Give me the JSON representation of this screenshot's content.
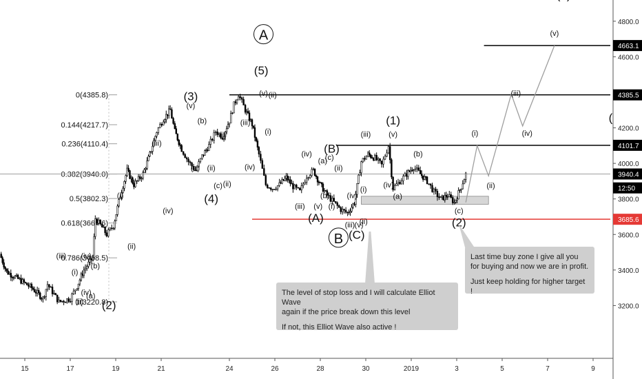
{
  "chart_data": {
    "type": "candlestick-elliott-wave",
    "ylim": [
      3000,
      4900
    ],
    "x_ticks": [
      {
        "label": "15",
        "x": 0
      },
      {
        "label": "17",
        "x": 2
      },
      {
        "label": "19",
        "x": 4
      },
      {
        "label": "21",
        "x": 6
      },
      {
        "label": "24",
        "x": 9
      },
      {
        "label": "26",
        "x": 11
      },
      {
        "label": "28",
        "x": 13
      },
      {
        "label": "30",
        "x": 15
      },
      {
        "label": "2019",
        "x": 17
      },
      {
        "label": "3",
        "x": 19
      },
      {
        "label": "5",
        "x": 21
      },
      {
        "label": "7",
        "x": 23
      },
      {
        "label": "9",
        "x": 25
      }
    ],
    "y_ticks": [
      {
        "label": "4800.0",
        "value": 4800
      },
      {
        "label": "4600.0",
        "value": 4600
      },
      {
        "label": "4200.0",
        "value": 4200
      },
      {
        "label": "4000.0",
        "value": 4000
      },
      {
        "label": "3800.0",
        "value": 3800
      },
      {
        "label": "3600.0",
        "value": 3600
      },
      {
        "label": "3400.0",
        "value": 3400
      },
      {
        "label": "3200.0",
        "value": 3200
      }
    ],
    "price_badges": [
      {
        "label": "4663.1",
        "value": 4663.1,
        "color": "#000000"
      },
      {
        "label": "4385.5",
        "value": 4385.5,
        "color": "#000000"
      },
      {
        "label": "4101.7",
        "value": 4101.7,
        "color": "#000000"
      },
      {
        "label": "3940.4",
        "value": 3940.4,
        "color": "#000000"
      },
      {
        "label": "12:50",
        "value": 3862,
        "color": "#000000"
      },
      {
        "label": "3685.6",
        "value": 3685.6,
        "color": "#e53935"
      }
    ],
    "horizontal_levels": [
      {
        "value": 4663.1,
        "x_start": 20.2,
        "x_end": 26.4,
        "color": "#000000"
      },
      {
        "value": 4385.5,
        "x_start": 9,
        "x_end": 26.4,
        "color": "#000000"
      },
      {
        "value": 4101.7,
        "x_start": 13.7,
        "x_end": 26.4,
        "color": "#000000"
      },
      {
        "value": 3685.6,
        "x_start": 10,
        "x_end": 26.4,
        "color": "#e53935"
      }
    ],
    "current_price": 3940.4,
    "fib_retracement": [
      {
        "label": "0(4385.8)",
        "value": 4385.8
      },
      {
        "label": "0.144(4217.7)",
        "value": 4217.7
      },
      {
        "label": "0.236(4110.4)",
        "value": 4110.4
      },
      {
        "label": "0.382(3940.0)",
        "value": 3940.0
      },
      {
        "label": "0.5(3802.3)",
        "value": 3802.3
      },
      {
        "label": "0.618(3664.6)",
        "value": 3664.6
      },
      {
        "label": "0.786(3468.5)",
        "value": 3468.5
      },
      {
        "label": "1(3220.8)",
        "value": 3220.8
      }
    ],
    "buy_zone": {
      "x_start": 14.8,
      "x_end": 20.4,
      "top": 3815,
      "bottom": 3770
    },
    "price_path": [
      {
        "x": -1.1,
        "y": 3490
      },
      {
        "x": -0.8,
        "y": 3390
      },
      {
        "x": -0.3,
        "y": 3350
      },
      {
        "x": 0.3,
        "y": 3300
      },
      {
        "x": 0.8,
        "y": 3240
      },
      {
        "x": 1.0,
        "y": 3320
      },
      {
        "x": 1.5,
        "y": 3220
      },
      {
        "x": 2.0,
        "y": 3240
      },
      {
        "x": 2.3,
        "y": 3310
      },
      {
        "x": 2.6,
        "y": 3400
      },
      {
        "x": 3.0,
        "y": 3470
      },
      {
        "x": 3.1,
        "y": 3690
      },
      {
        "x": 3.4,
        "y": 3640
      },
      {
        "x": 3.6,
        "y": 3600
      },
      {
        "x": 3.9,
        "y": 3650
      },
      {
        "x": 4.2,
        "y": 3820
      },
      {
        "x": 4.5,
        "y": 3960
      },
      {
        "x": 4.8,
        "y": 3880
      },
      {
        "x": 5.2,
        "y": 3940
      },
      {
        "x": 5.5,
        "y": 4050
      },
      {
        "x": 5.8,
        "y": 4180
      },
      {
        "x": 6.1,
        "y": 4250
      },
      {
        "x": 6.4,
        "y": 4300
      },
      {
        "x": 6.6,
        "y": 4180
      },
      {
        "x": 6.9,
        "y": 4080
      },
      {
        "x": 7.2,
        "y": 4010
      },
      {
        "x": 7.5,
        "y": 3960
      },
      {
        "x": 7.8,
        "y": 4040
      },
      {
        "x": 8.1,
        "y": 4100
      },
      {
        "x": 8.4,
        "y": 4180
      },
      {
        "x": 8.7,
        "y": 4150
      },
      {
        "x": 9.0,
        "y": 4240
      },
      {
        "x": 9.2,
        "y": 4330
      },
      {
        "x": 9.4,
        "y": 4390
      },
      {
        "x": 9.7,
        "y": 4300
      },
      {
        "x": 10.0,
        "y": 4220
      },
      {
        "x": 10.3,
        "y": 4050
      },
      {
        "x": 10.6,
        "y": 3880
      },
      {
        "x": 10.9,
        "y": 3860
      },
      {
        "x": 11.2,
        "y": 3880
      },
      {
        "x": 11.5,
        "y": 3920
      },
      {
        "x": 11.8,
        "y": 3870
      },
      {
        "x": 12.1,
        "y": 3840
      },
      {
        "x": 12.4,
        "y": 3930
      },
      {
        "x": 12.7,
        "y": 3960
      },
      {
        "x": 13.0,
        "y": 3880
      },
      {
        "x": 13.3,
        "y": 3820
      },
      {
        "x": 13.6,
        "y": 3780
      },
      {
        "x": 13.9,
        "y": 3740
      },
      {
        "x": 14.2,
        "y": 3720
      },
      {
        "x": 14.5,
        "y": 3780
      },
      {
        "x": 14.8,
        "y": 4010
      },
      {
        "x": 15.1,
        "y": 4050
      },
      {
        "x": 15.4,
        "y": 4030
      },
      {
        "x": 15.7,
        "y": 3990
      },
      {
        "x": 16.0,
        "y": 4100
      },
      {
        "x": 16.2,
        "y": 3860
      },
      {
        "x": 16.5,
        "y": 3900
      },
      {
        "x": 16.8,
        "y": 3940
      },
      {
        "x": 17.1,
        "y": 3980
      },
      {
        "x": 17.4,
        "y": 3940
      },
      {
        "x": 17.7,
        "y": 3900
      },
      {
        "x": 18.0,
        "y": 3840
      },
      {
        "x": 18.3,
        "y": 3800
      },
      {
        "x": 18.6,
        "y": 3820
      },
      {
        "x": 18.9,
        "y": 3780
      },
      {
        "x": 19.2,
        "y": 3870
      },
      {
        "x": 19.4,
        "y": 3940
      }
    ],
    "projection": [
      {
        "x": 19.4,
        "y": 3780
      },
      {
        "x": 19.9,
        "y": 4100
      },
      {
        "x": 20.4,
        "y": 3930
      },
      {
        "x": 21.4,
        "y": 4390
      },
      {
        "x": 21.9,
        "y": 4210
      },
      {
        "x": 23.3,
        "y": 4663
      }
    ],
    "wave_labels": [
      {
        "text": "(3)",
        "x": 23.7,
        "y": 4925,
        "size": "big"
      },
      {
        "text": "(v)",
        "x": 23.3,
        "y": 4718,
        "size": "small"
      },
      {
        "text": "A",
        "x": 10.5,
        "y": 4700,
        "size": "circle"
      },
      {
        "text": "(5)",
        "x": 10.4,
        "y": 4500,
        "size": "big"
      },
      {
        "text": "(3)",
        "x": 7.3,
        "y": 4355,
        "size": "big"
      },
      {
        "text": "(v)",
        "x": 10.5,
        "y": 4380,
        "size": "small"
      },
      {
        "text": "(ii)",
        "x": 10.9,
        "y": 4370,
        "size": "small"
      },
      {
        "text": "(iii)",
        "x": 21.6,
        "y": 4380,
        "size": "small"
      },
      {
        "text": "(4)",
        "x": 26,
        "y": 4235,
        "size": "big"
      },
      {
        "text": "(1)",
        "x": 16.2,
        "y": 4220,
        "size": "big"
      },
      {
        "text": "(v)",
        "x": 16.2,
        "y": 4150,
        "size": "small"
      },
      {
        "text": "(iii)",
        "x": 15.0,
        "y": 4150,
        "size": "small"
      },
      {
        "text": "(i)",
        "x": 19.8,
        "y": 4155,
        "size": "small"
      },
      {
        "text": "(iv)",
        "x": 22.1,
        "y": 4155,
        "size": "small"
      },
      {
        "text": "(v)",
        "x": 7.3,
        "y": 4310,
        "size": "small"
      },
      {
        "text": "(b)",
        "x": 7.8,
        "y": 4225,
        "size": "small"
      },
      {
        "text": "(iii)",
        "x": 9.7,
        "y": 4215,
        "size": "small"
      },
      {
        "text": "(i)",
        "x": 8.7,
        "y": 4145,
        "size": "small"
      },
      {
        "text": "(i)",
        "x": 10.7,
        "y": 4165,
        "size": "small"
      },
      {
        "text": "(iii)",
        "x": 5.8,
        "y": 4100,
        "size": "small"
      },
      {
        "text": "(B)",
        "x": 13.5,
        "y": 4060,
        "size": "big"
      },
      {
        "text": "(iv)",
        "x": 12.4,
        "y": 4040,
        "size": "small"
      },
      {
        "text": "(a)",
        "x": 13.1,
        "y": 4000,
        "size": "small"
      },
      {
        "text": "(c)",
        "x": 13.4,
        "y": 4020,
        "size": "small"
      },
      {
        "text": "(b)",
        "x": 17.3,
        "y": 4040,
        "size": "small"
      },
      {
        "text": "(ii)",
        "x": 13.8,
        "y": 3960,
        "size": "small"
      },
      {
        "text": "(a)",
        "x": 7.5,
        "y": 3960,
        "size": "small"
      },
      {
        "text": "(ii)",
        "x": 8.2,
        "y": 3960,
        "size": "small"
      },
      {
        "text": "(iv)",
        "x": 9.9,
        "y": 3965,
        "size": "small"
      },
      {
        "text": "(c)",
        "x": 8.5,
        "y": 3860,
        "size": "small"
      },
      {
        "text": "(ii)",
        "x": 8.9,
        "y": 3870,
        "size": "small"
      },
      {
        "text": "(iv)",
        "x": 16.0,
        "y": 3865,
        "size": "small"
      },
      {
        "text": "(ii)",
        "x": 20.5,
        "y": 3860,
        "size": "small"
      },
      {
        "text": "(4)",
        "x": 8.2,
        "y": 3780,
        "size": "big"
      },
      {
        "text": "(b)",
        "x": 13.2,
        "y": 3805,
        "size": "small"
      },
      {
        "text": "(a)",
        "x": 16.4,
        "y": 3800,
        "size": "small"
      },
      {
        "text": "(i)",
        "x": 4.2,
        "y": 3805,
        "size": "small"
      },
      {
        "text": "(iv)",
        "x": 14.4,
        "y": 3805,
        "size": "small"
      },
      {
        "text": "(i)",
        "x": 14.9,
        "y": 3840,
        "size": "small"
      },
      {
        "text": "(iii)",
        "x": 12.1,
        "y": 3745,
        "size": "small"
      },
      {
        "text": "(v)",
        "x": 12.9,
        "y": 3745,
        "size": "small"
      },
      {
        "text": "(i)",
        "x": 13.5,
        "y": 3745,
        "size": "small"
      },
      {
        "text": "(iv)",
        "x": 6.3,
        "y": 3720,
        "size": "small"
      },
      {
        "text": "(c)",
        "x": 19.1,
        "y": 3720,
        "size": "small"
      },
      {
        "text": "(A)",
        "x": 12.8,
        "y": 3670,
        "size": "big"
      },
      {
        "text": "(2)",
        "x": 19.1,
        "y": 3645,
        "size": "big"
      },
      {
        "text": "(iii)",
        "x": 14.3,
        "y": 3640,
        "size": "small"
      },
      {
        "text": "(v)",
        "x": 14.7,
        "y": 3640,
        "size": "small"
      },
      {
        "text": "(ii)",
        "x": 14.9,
        "y": 3660,
        "size": "small"
      },
      {
        "text": "B",
        "x": 13.8,
        "y": 3555,
        "size": "circle"
      },
      {
        "text": "(C)",
        "x": 14.6,
        "y": 3575,
        "size": "big"
      },
      {
        "text": "(ii)",
        "x": 4.7,
        "y": 3520,
        "size": "small"
      },
      {
        "text": "(iii)",
        "x": 1.6,
        "y": 3465,
        "size": "small"
      },
      {
        "text": "(iv)",
        "x": 2.7,
        "y": 3465,
        "size": "small"
      },
      {
        "text": "(b)",
        "x": 3.1,
        "y": 3410,
        "size": "small"
      },
      {
        "text": "(i)",
        "x": 2.2,
        "y": 3375,
        "size": "small"
      },
      {
        "text": "(ii)",
        "x": 2.4,
        "y": 3210,
        "size": "small"
      },
      {
        "text": "(iv)",
        "x": 2.7,
        "y": 3260,
        "size": "small"
      },
      {
        "text": "(a)",
        "x": 2.9,
        "y": 3240,
        "size": "small"
      },
      {
        "text": "(2)",
        "x": 3.7,
        "y": 3180,
        "size": "big"
      }
    ],
    "annotations": [
      {
        "lines": [
          "The level of stop loss and I will calculate Elliot Wave",
          "again if the price break down this level",
          "",
          "If not, this Elliot Wave also active !"
        ]
      },
      {
        "lines": [
          "Last time buy zone I give all you",
          "for buying and now we are in profit.",
          "",
          "Just keep holding for higher target !"
        ]
      }
    ],
    "colors": {
      "candle": "#000000",
      "wave_line": "#9e9e9e",
      "support_line": "#e53935",
      "buy_zone": "#d6d6d6",
      "callout": "#cfcfcf"
    }
  }
}
